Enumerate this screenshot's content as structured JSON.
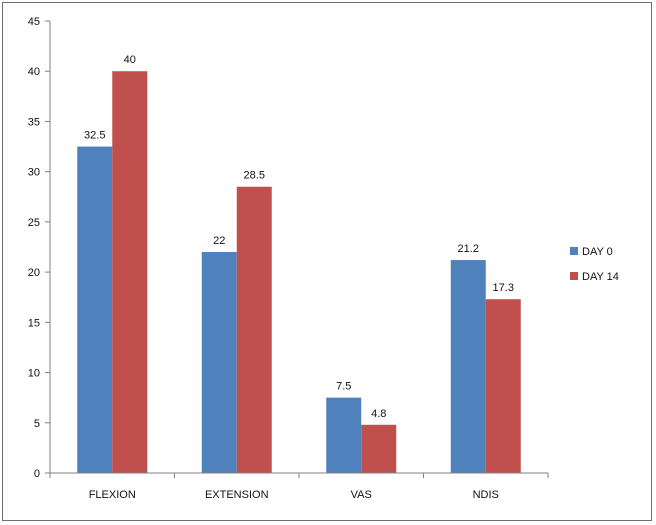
{
  "chart_data": {
    "type": "bar",
    "categories": [
      "FLEXION",
      "EXTENSION",
      "VAS",
      "NDIS"
    ],
    "series": [
      {
        "name": "DAY 0",
        "values": [
          32.5,
          22,
          7.5,
          21.2
        ],
        "labels": [
          "32.5",
          "22",
          "7.5",
          "21.2"
        ],
        "color": "#4f81bd"
      },
      {
        "name": "DAY 14",
        "values": [
          40,
          28.5,
          4.8,
          17.3
        ],
        "labels": [
          "40",
          "28.5",
          "4.8",
          "17.3"
        ],
        "color": "#c0504d"
      }
    ],
    "yticks": [
      "0",
      "5",
      "10",
      "15",
      "20",
      "25",
      "30",
      "35",
      "40",
      "45"
    ],
    "ylim": [
      0,
      45
    ],
    "title": "",
    "xlabel": "",
    "ylabel": "",
    "grid": false,
    "legend_position": "right"
  }
}
